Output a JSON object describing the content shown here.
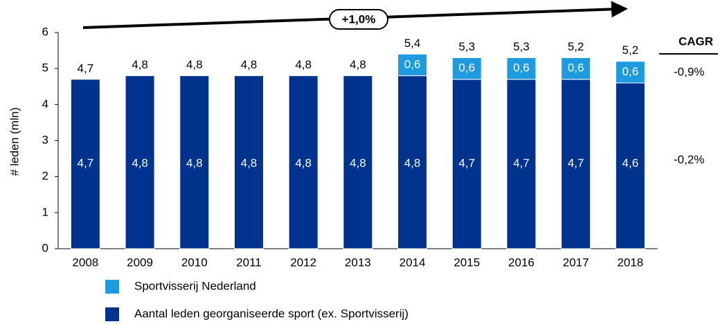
{
  "chart_data": {
    "type": "stacked_bar",
    "y_label": "# leden (mln)",
    "categories": [
      "2008",
      "2009",
      "2010",
      "2011",
      "2012",
      "2013",
      "2014",
      "2015",
      "2016",
      "2017",
      "2018"
    ],
    "series": [
      {
        "name": "Aantal leden georganiseerde sport (ex. Sportvisserij)",
        "color": "#00338d",
        "values": [
          4.7,
          4.8,
          4.8,
          4.8,
          4.8,
          4.8,
          4.8,
          4.7,
          4.7,
          4.7,
          4.6
        ],
        "value_labels": [
          "4,7",
          "4,8",
          "4,8",
          "4,8",
          "4,8",
          "4,8",
          "4,8",
          "4,7",
          "4,7",
          "4,7",
          "4,6"
        ]
      },
      {
        "name": "Sportvisserij Nederland",
        "color": "#1e9be0",
        "values": [
          null,
          null,
          null,
          null,
          null,
          null,
          0.6,
          0.6,
          0.6,
          0.6,
          0.6
        ],
        "value_labels": [
          null,
          null,
          null,
          null,
          null,
          null,
          "0,6",
          "0,6",
          "0,6",
          "0,6",
          "0,6"
        ]
      }
    ],
    "totals": [
      4.7,
      4.8,
      4.8,
      4.8,
      4.8,
      4.8,
      5.4,
      5.3,
      5.3,
      5.2,
      5.2
    ],
    "total_labels": [
      "4,7",
      "4,8",
      "4,8",
      "4,8",
      "4,8",
      "4,8",
      "5,4",
      "5,3",
      "5,3",
      "5,2",
      "5,2"
    ],
    "ylim": [
      0,
      6
    ],
    "yticks": [
      0,
      1,
      2,
      3,
      4,
      5,
      6
    ],
    "grid": false,
    "growth_label": "+1,0%",
    "cagr_title": "CAGR",
    "cagr_values": [
      "-0,9%",
      "-0,2%"
    ]
  }
}
